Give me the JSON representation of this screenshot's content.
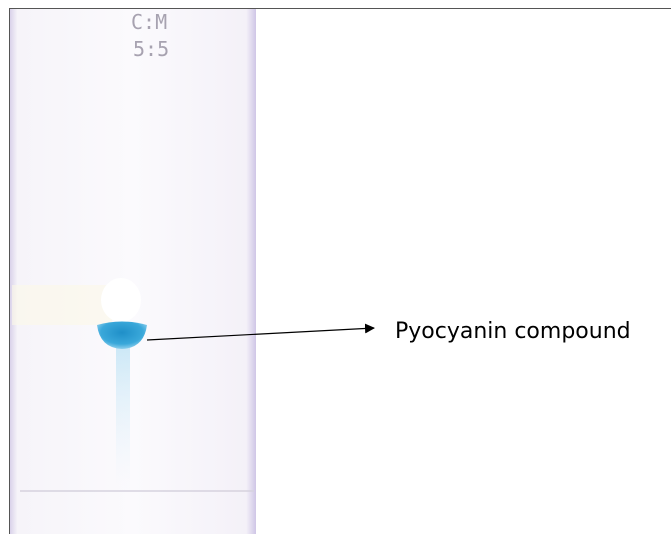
{
  "plate": {
    "solvent_label": "C:M",
    "ratio_label": "5:5"
  },
  "annotation": {
    "label": "Pyocyanin compound"
  }
}
